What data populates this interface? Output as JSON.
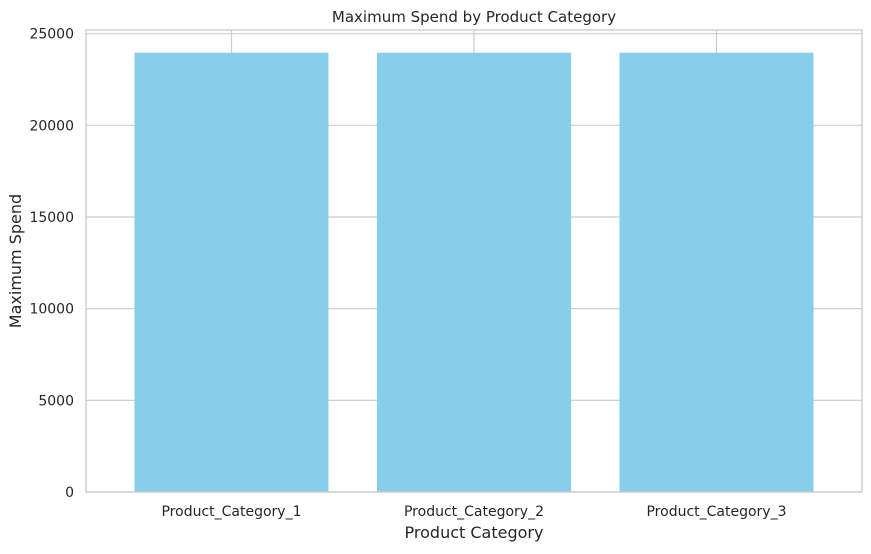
{
  "chart_data": {
    "type": "bar",
    "title": "Maximum Spend by Product Category",
    "xlabel": "Product Category",
    "ylabel": "Maximum Spend",
    "categories": [
      "Product_Category_1",
      "Product_Category_2",
      "Product_Category_3"
    ],
    "values": [
      23961,
      23961,
      23961
    ],
    "ylim": [
      0,
      25200
    ],
    "yticks": [
      0,
      5000,
      10000,
      15000,
      20000,
      25000
    ],
    "ytick_labels": [
      "0",
      "5000",
      "10000",
      "15000",
      "20000",
      "25000"
    ],
    "grid": true,
    "legend": "none",
    "colors": {
      "bar": "#87ceeb",
      "grid": "#cccccc",
      "text": "#262626",
      "background": "#ffffff"
    }
  }
}
